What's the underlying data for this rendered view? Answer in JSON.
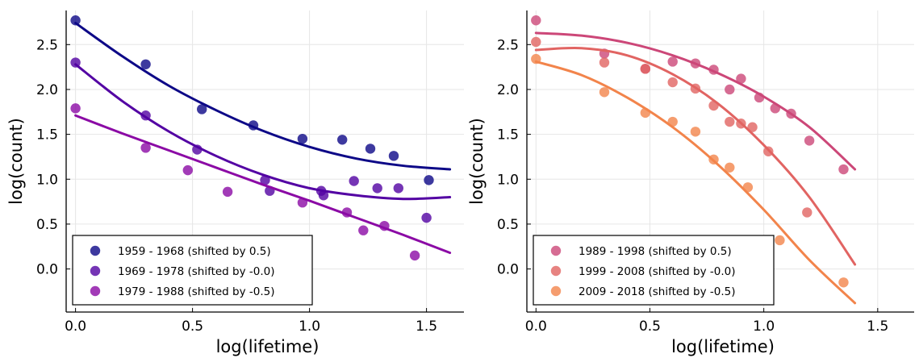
{
  "chart_data": [
    {
      "type": "scatter",
      "xlabel": "log(lifetime)",
      "ylabel": "log(count)",
      "xlim": [
        -0.04,
        1.66
      ],
      "ylim": [
        -0.48,
        2.88
      ],
      "xticks": [
        "0.0",
        "0.5",
        "1.0",
        "1.5"
      ],
      "yticks": [
        "0.0",
        "0.5",
        "1.0",
        "1.5",
        "2.0",
        "2.5"
      ],
      "grid": true,
      "legend_position": "bottom-left",
      "series": [
        {
          "name": "1959 - 1968 (shifted by 0.5)",
          "color": "#0d0887",
          "points": [
            [
              0.0,
              2.77
            ],
            [
              0.3,
              2.28
            ],
            [
              0.54,
              1.78
            ],
            [
              0.76,
              1.6
            ],
            [
              0.97,
              1.45
            ],
            [
              1.14,
              1.44
            ],
            [
              1.26,
              1.34
            ],
            [
              1.36,
              1.26
            ],
            [
              1.51,
              0.99
            ]
          ],
          "fit": [
            [
              0.0,
              2.74
            ],
            [
              0.2,
              2.37
            ],
            [
              0.4,
              2.04
            ],
            [
              0.6,
              1.77
            ],
            [
              0.8,
              1.54
            ],
            [
              1.0,
              1.36
            ],
            [
              1.2,
              1.23
            ],
            [
              1.4,
              1.15
            ],
            [
              1.6,
              1.11
            ]
          ]
        },
        {
          "name": "1969 - 1978 (shifted by -0.0)",
          "color": "#5302a3",
          "points": [
            [
              0.0,
              2.3
            ],
            [
              0.3,
              1.71
            ],
            [
              0.52,
              1.33
            ],
            [
              0.81,
              0.99
            ],
            [
              0.83,
              0.87
            ],
            [
              1.05,
              0.87
            ],
            [
              1.06,
              0.82
            ],
            [
              1.19,
              0.98
            ],
            [
              1.29,
              0.9
            ],
            [
              1.38,
              0.9
            ],
            [
              1.5,
              0.57
            ]
          ],
          "fit": [
            [
              0.0,
              2.28
            ],
            [
              0.2,
              1.87
            ],
            [
              0.4,
              1.53
            ],
            [
              0.6,
              1.26
            ],
            [
              0.8,
              1.05
            ],
            [
              1.0,
              0.9
            ],
            [
              1.2,
              0.82
            ],
            [
              1.4,
              0.78
            ],
            [
              1.6,
              0.8
            ]
          ]
        },
        {
          "name": "1979 - 1988 (shifted by -0.5)",
          "color": "#8b0aa5",
          "points": [
            [
              0.0,
              1.79
            ],
            [
              0.3,
              1.35
            ],
            [
              0.48,
              1.1
            ],
            [
              0.65,
              0.86
            ],
            [
              0.97,
              0.74
            ],
            [
              1.16,
              0.63
            ],
            [
              1.23,
              0.43
            ],
            [
              1.32,
              0.48
            ],
            [
              1.45,
              0.15
            ]
          ],
          "fit": [
            [
              0.0,
              1.71
            ],
            [
              0.2,
              1.51
            ],
            [
              0.4,
              1.32
            ],
            [
              0.6,
              1.13
            ],
            [
              0.8,
              0.94
            ],
            [
              1.0,
              0.76
            ],
            [
              1.2,
              0.57
            ],
            [
              1.4,
              0.38
            ],
            [
              1.6,
              0.18
            ]
          ]
        }
      ]
    },
    {
      "type": "scatter",
      "xlabel": "log(lifetime)",
      "ylabel": "log(count)",
      "xlim": [
        -0.04,
        1.66
      ],
      "ylim": [
        -0.48,
        2.88
      ],
      "xticks": [
        "0.0",
        "0.5",
        "1.0",
        "1.5"
      ],
      "yticks": [
        "0.0",
        "0.5",
        "1.0",
        "1.5",
        "2.0",
        "2.5"
      ],
      "grid": true,
      "legend_position": "bottom-left",
      "series": [
        {
          "name": "1989 - 1998 (shifted by 0.5)",
          "color": "#cc4778",
          "points": [
            [
              0.0,
              2.77
            ],
            [
              0.3,
              2.4
            ],
            [
              0.48,
              2.23
            ],
            [
              0.6,
              2.31
            ],
            [
              0.7,
              2.29
            ],
            [
              0.78,
              2.22
            ],
            [
              0.85,
              2.0
            ],
            [
              0.9,
              2.12
            ],
            [
              0.98,
              1.91
            ],
            [
              1.05,
              1.79
            ],
            [
              1.12,
              1.73
            ],
            [
              1.2,
              1.43
            ],
            [
              1.35,
              1.11
            ]
          ],
          "fit": [
            [
              0.0,
              2.63
            ],
            [
              0.2,
              2.6
            ],
            [
              0.4,
              2.52
            ],
            [
              0.6,
              2.38
            ],
            [
              0.8,
              2.18
            ],
            [
              1.0,
              1.92
            ],
            [
              1.2,
              1.58
            ],
            [
              1.4,
              1.11
            ]
          ]
        },
        {
          "name": "1999 - 2008 (shifted by -0.0)",
          "color": "#e16462",
          "points": [
            [
              0.0,
              2.53
            ],
            [
              0.3,
              2.3
            ],
            [
              0.48,
              2.23
            ],
            [
              0.6,
              2.08
            ],
            [
              0.7,
              2.01
            ],
            [
              0.78,
              1.82
            ],
            [
              0.85,
              1.64
            ],
            [
              0.9,
              1.62
            ],
            [
              0.95,
              1.58
            ],
            [
              1.02,
              1.31
            ],
            [
              1.19,
              0.63
            ]
          ],
          "fit": [
            [
              0.0,
              2.44
            ],
            [
              0.2,
              2.46
            ],
            [
              0.4,
              2.38
            ],
            [
              0.6,
              2.17
            ],
            [
              0.8,
              1.84
            ],
            [
              1.0,
              1.38
            ],
            [
              1.2,
              0.8
            ],
            [
              1.4,
              0.05
            ]
          ]
        },
        {
          "name": "2009 - 2018 (shifted by -0.5)",
          "color": "#f2844b",
          "points": [
            [
              0.0,
              2.34
            ],
            [
              0.3,
              1.97
            ],
            [
              0.48,
              1.74
            ],
            [
              0.6,
              1.64
            ],
            [
              0.7,
              1.53
            ],
            [
              0.78,
              1.22
            ],
            [
              0.85,
              1.13
            ],
            [
              0.93,
              0.91
            ],
            [
              1.07,
              0.32
            ],
            [
              1.35,
              -0.15
            ]
          ],
          "fit": [
            [
              0.0,
              2.31
            ],
            [
              0.2,
              2.16
            ],
            [
              0.4,
              1.91
            ],
            [
              0.6,
              1.58
            ],
            [
              0.8,
              1.16
            ],
            [
              1.0,
              0.66
            ],
            [
              1.2,
              0.1
            ],
            [
              1.4,
              -0.38
            ]
          ]
        }
      ]
    }
  ]
}
